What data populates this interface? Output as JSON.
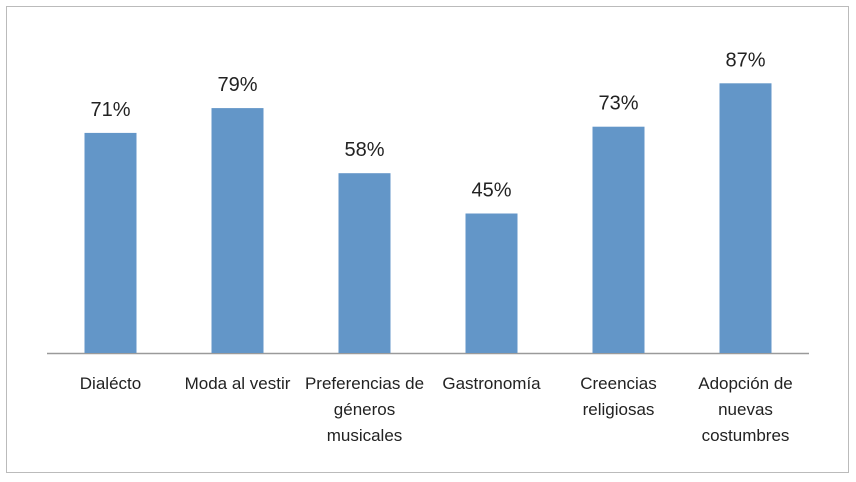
{
  "chart_data": {
    "type": "bar",
    "categories": [
      "Dialécto",
      "Moda al vestir",
      "Preferencias de géneros musicales",
      "Gastronomía",
      "Creencias religiosas",
      "Adopción de nuevas costumbres"
    ],
    "values": [
      71,
      79,
      58,
      45,
      73,
      87
    ],
    "value_labels": [
      "71%",
      "79%",
      "58%",
      "45%",
      "73%",
      "87%"
    ],
    "color": "#6396c8"
  }
}
